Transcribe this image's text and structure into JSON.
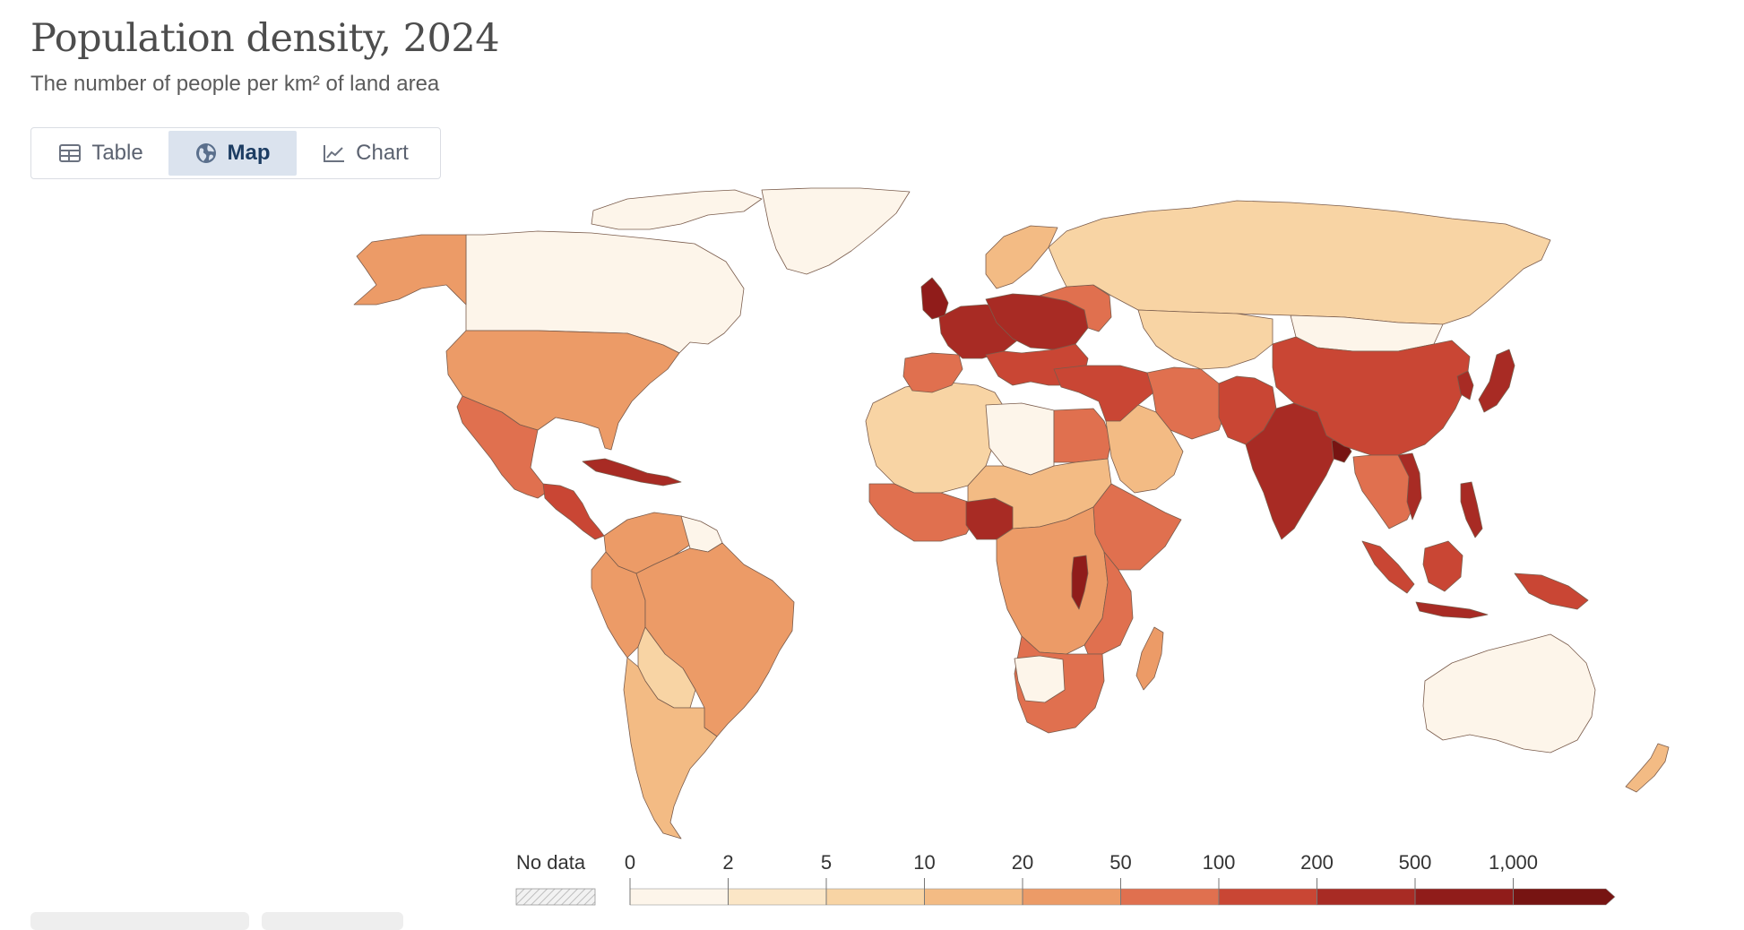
{
  "header": {
    "title": "Population density, 2024",
    "subtitle": "The number of people per km² of land area"
  },
  "tabs": [
    {
      "label": "Table",
      "icon": "table-icon",
      "active": false
    },
    {
      "label": "Map",
      "icon": "globe-icon",
      "active": true
    },
    {
      "label": "Chart",
      "icon": "line-chart-icon",
      "active": false
    }
  ],
  "colors": {
    "bin0": "#fdf5ea",
    "bin1": "#fbe6c6",
    "bin2": "#f8d4a4",
    "bin3": "#f3bb84",
    "bin4": "#ec9b67",
    "bin5": "#e0704f",
    "bin6": "#c94634",
    "bin7": "#a82b24",
    "bin8": "#901c1a",
    "bin9": "#771412",
    "border": "#7a5c4c"
  },
  "legend": {
    "no_data_label": "No data",
    "ticks": [
      "0",
      "2",
      "5",
      "10",
      "20",
      "50",
      "100",
      "200",
      "500",
      "1,000"
    ]
  }
}
